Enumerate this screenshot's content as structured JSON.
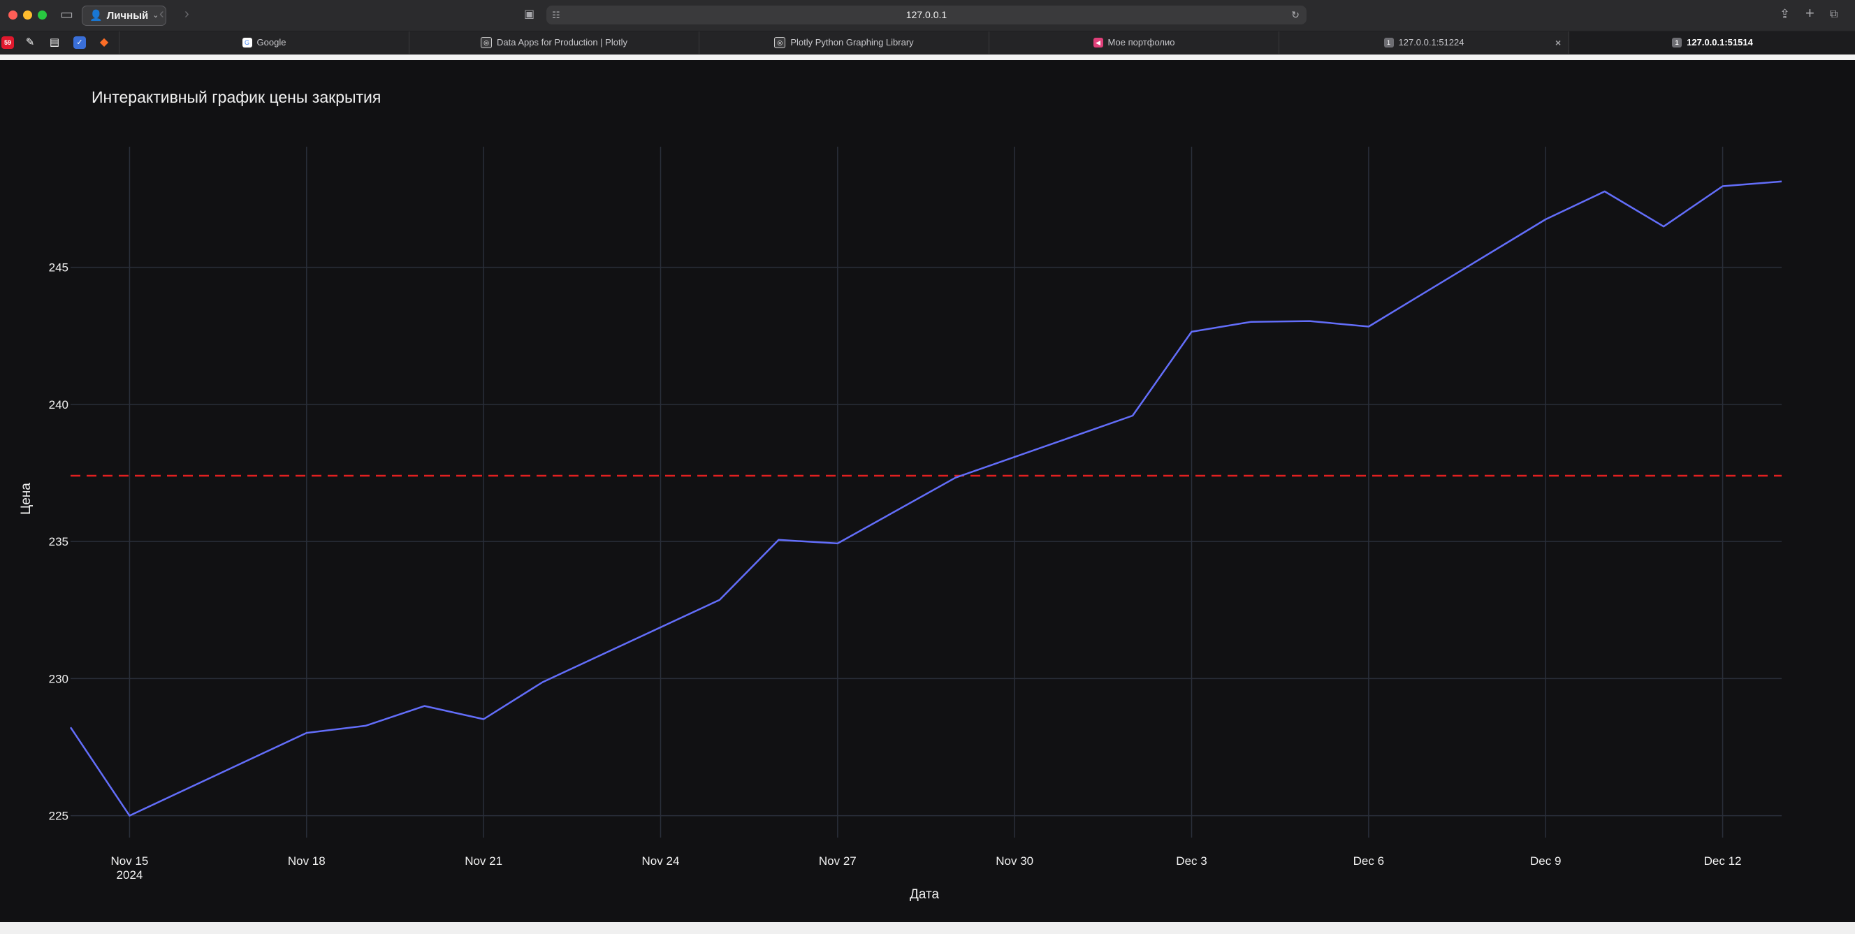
{
  "browser": {
    "profile_label": "Личный",
    "address": "127.0.0.1",
    "tabs": [
      {
        "label": "Google",
        "icon": "google-icon"
      },
      {
        "label": "Data Apps for Production | Plotly",
        "icon": "plotly-icon"
      },
      {
        "label": "Plotly Python Graphing Library",
        "icon": "plotly-icon"
      },
      {
        "label": "Мое портфолио",
        "icon": "portfolio-icon"
      },
      {
        "label": "127.0.0.1:51224",
        "icon": "page-icon"
      },
      {
        "label": "127.0.0.1:51514",
        "icon": "page-icon",
        "active": true
      }
    ],
    "badge_count": "59"
  },
  "chart_data": {
    "type": "line",
    "title": "Интерактивный график цены закрытия",
    "xlabel": "Дата",
    "ylabel": "Цена",
    "x_ticks": [
      "Nov 15",
      "Nov 18",
      "Nov 21",
      "Nov 24",
      "Nov 27",
      "Nov 30",
      "Dec 3",
      "Dec 6",
      "Dec 9",
      "Dec 12"
    ],
    "x_tick_year": "2024",
    "y_ticks": [
      225,
      230,
      235,
      240,
      245
    ],
    "ylim": [
      224.2,
      249.4
    ],
    "xlim": [
      "2024-11-14",
      "2024-12-13"
    ],
    "grid": true,
    "series": [
      {
        "color": "#636efa",
        "x": [
          "2024-11-14",
          "2024-11-15",
          "2024-11-18",
          "2024-11-19",
          "2024-11-20",
          "2024-11-21",
          "2024-11-22",
          "2024-11-25",
          "2024-11-26",
          "2024-11-27",
          "2024-11-29",
          "2024-12-02",
          "2024-12-03",
          "2024-12-04",
          "2024-12-05",
          "2024-12-06",
          "2024-12-09",
          "2024-12-10",
          "2024-12-11",
          "2024-12-12",
          "2024-12-13"
        ],
        "values": [
          228.22,
          225.0,
          228.02,
          228.28,
          229.0,
          228.52,
          229.87,
          232.87,
          235.06,
          234.93,
          237.33,
          239.59,
          242.65,
          243.01,
          243.04,
          242.84,
          246.75,
          247.77,
          246.49,
          247.96,
          248.13
        ]
      }
    ],
    "mean_line": {
      "value": 237.4,
      "color": "#e02020",
      "style": "dash"
    }
  }
}
